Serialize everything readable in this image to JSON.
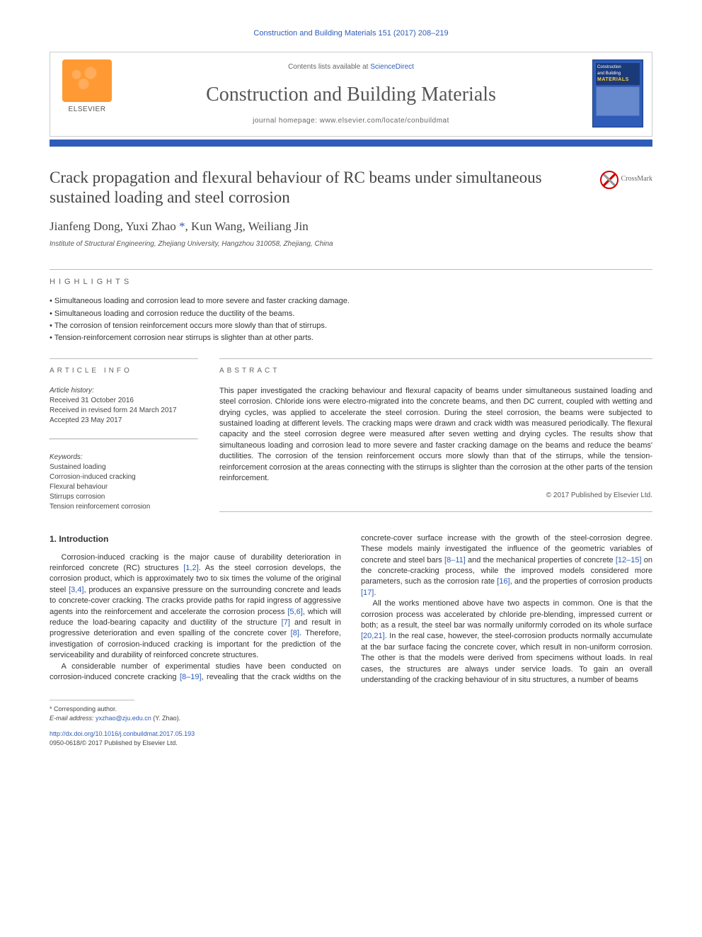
{
  "citation": "Construction and Building Materials 151 (2017) 208–219",
  "header": {
    "contents_prefix": "Contents lists available at ",
    "contents_link": "ScienceDirect",
    "journal_title": "Construction and Building Materials",
    "homepage_prefix": "journal homepage: ",
    "homepage_url": "www.elsevier.com/locate/conbuildmat",
    "publisher": "ELSEVIER",
    "cover": {
      "line1": "Construction",
      "line2": "and Building",
      "line3": "MATERIALS"
    }
  },
  "crossmark_label": "CrossMark",
  "article": {
    "title": "Crack propagation and flexural behaviour of RC beams under simultaneous sustained loading and steel corrosion",
    "authors": [
      {
        "name": "Jianfeng Dong",
        "corr": false
      },
      {
        "name": "Yuxi Zhao",
        "corr": true
      },
      {
        "name": "Kun Wang",
        "corr": false
      },
      {
        "name": "Weiliang Jin",
        "corr": false
      }
    ],
    "affiliation": "Institute of Structural Engineering, Zhejiang University, Hangzhou 310058, Zhejiang, China"
  },
  "highlights_label": "HIGHLIGHTS",
  "highlights": [
    "Simultaneous loading and corrosion lead to more severe and faster cracking damage.",
    "Simultaneous loading and corrosion reduce the ductility of the beams.",
    "The corrosion of tension reinforcement occurs more slowly than that of stirrups.",
    "Tension-reinforcement corrosion near stirrups is slighter than at other parts."
  ],
  "info": {
    "label": "ARTICLE INFO",
    "history_label": "Article history:",
    "received": "Received 31 October 2016",
    "revised": "Received in revised form 24 March 2017",
    "accepted": "Accepted 23 May 2017",
    "keywords_label": "Keywords:",
    "keywords": [
      "Sustained loading",
      "Corrosion-induced cracking",
      "Flexural behaviour",
      "Stirrups corrosion",
      "Tension reinforcement corrosion"
    ]
  },
  "abstract": {
    "label": "ABSTRACT",
    "text": "This paper investigated the cracking behaviour and flexural capacity of beams under simultaneous sustained loading and steel corrosion. Chloride ions were electro-migrated into the concrete beams, and then DC current, coupled with wetting and drying cycles, was applied to accelerate the steel corrosion. During the steel corrosion, the beams were subjected to sustained loading at different levels. The cracking maps were drawn and crack width was measured periodically. The flexural capacity and the steel corrosion degree were measured after seven wetting and drying cycles. The results show that simultaneous loading and corrosion lead to more severe and faster cracking damage on the beams and reduce the beams' ductilities. The corrosion of the tension reinforcement occurs more slowly than that of the stirrups, while the tension-reinforcement corrosion at the areas connecting with the stirrups is slighter than the corrosion at the other parts of the tension reinforcement.",
    "copyright": "© 2017 Published by Elsevier Ltd."
  },
  "intro": {
    "heading": "1. Introduction",
    "p1_a": "Corrosion-induced cracking is the major cause of durability deterioration in reinforced concrete (RC) structures ",
    "p1_r1": "[1,2]",
    "p1_b": ". As the steel corrosion develops, the corrosion product, which is approximately two to six times the volume of the original steel ",
    "p1_r2": "[3,4]",
    "p1_c": ", produces an expansive pressure on the surrounding concrete and leads to concrete-cover cracking. The cracks provide paths for rapid ingress of aggressive agents into the reinforcement and accelerate the corrosion process ",
    "p1_r3": "[5,6]",
    "p1_d": ", which will reduce the load-bearing capacity and ductility of the structure ",
    "p1_r4": "[7]",
    "p1_e": " and result in progressive deterioration and even spalling of the concrete cover ",
    "p1_r5": "[8]",
    "p1_f": ". Therefore, investigation of corrosion-induced cracking is important for the prediction of the serviceability and durability of reinforced concrete structures.",
    "p2_a": "A considerable number of experimental studies have been conducted on corrosion-induced concrete cracking ",
    "p2_r1": "[8–19]",
    "p2_b": ", revealing that the crack widths on the concrete-cover surface increase with the growth of the steel-corrosion degree. These models mainly investigated the influence of the geometric variables of concrete and steel bars ",
    "p2_r2": "[8–11]",
    "p2_c": " and the mechanical properties of concrete ",
    "p2_r3": "[12–15]",
    "p2_d": " on the concrete-cracking process, while the improved models considered more parameters, such as the corrosion rate ",
    "p2_r4": "[16]",
    "p2_e": ", and the properties of corrosion products ",
    "p2_r5": "[17]",
    "p2_f": ".",
    "p3_a": "All the works mentioned above have two aspects in common. One is that the corrosion process was accelerated by chloride pre-blending, impressed current or both; as a result, the steel bar was normally uniformly corroded on its whole surface ",
    "p3_r1": "[20,21]",
    "p3_b": ". In the real case, however, the steel-corrosion products normally accumulate at the bar surface facing the concrete cover, which result in non-uniform corrosion. The other is that the models were derived from specimens without loads. In real cases, the structures are always under service loads. To gain an overall understanding of the cracking behaviour of in situ structures, a number of beams"
  },
  "footnote": {
    "corr_label": "* Corresponding author.",
    "email_label": "E-mail address: ",
    "email": "yxzhao@zju.edu.cn",
    "email_who": " (Y. Zhao)."
  },
  "doi": {
    "url": "http://dx.doi.org/10.1016/j.conbuildmat.2017.05.193",
    "issn": "0950-0618/© 2017 Published by Elsevier Ltd."
  }
}
